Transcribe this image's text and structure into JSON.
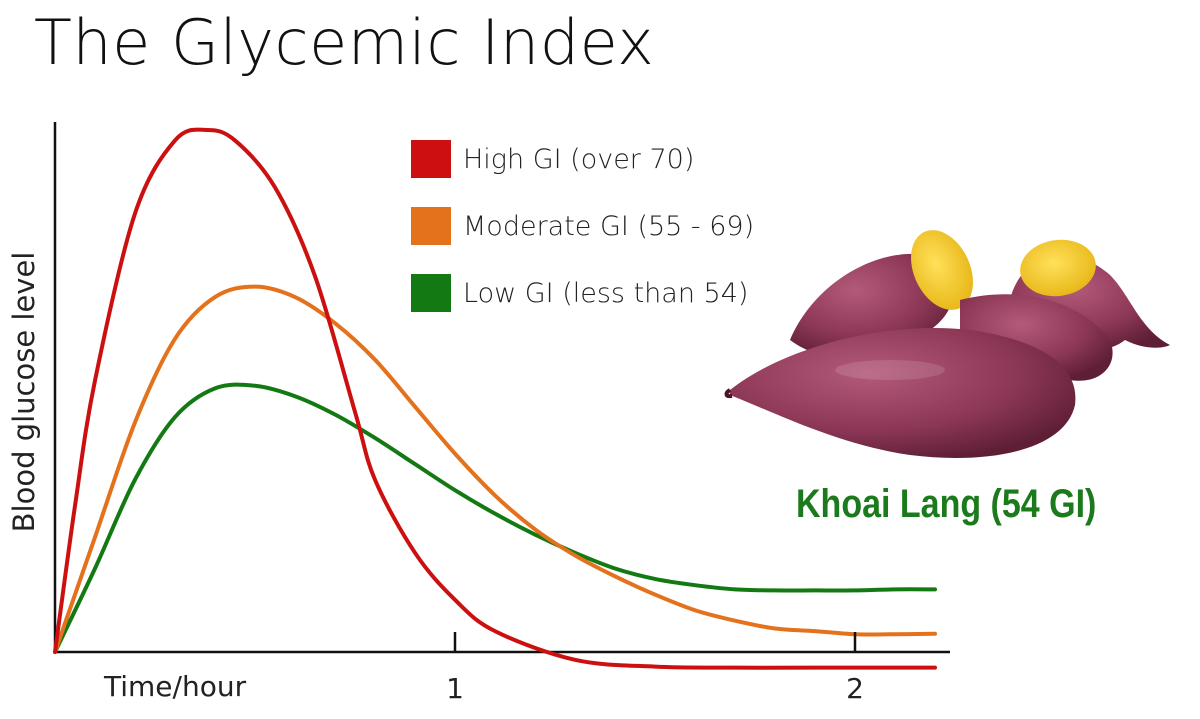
{
  "title": "The Glycemic Index",
  "caption": "Khoai Lang (54 GI)",
  "image": {
    "subject": "sweet-potatoes"
  },
  "colors": {
    "high": "#cc1010",
    "moderate": "#e4711b",
    "low": "#137a13",
    "caption": "#1b7a1b",
    "axis": "#111111"
  },
  "chart_data": {
    "type": "line",
    "title": "The Glycemic Index",
    "xlabel": "Time/hour",
    "ylabel": "Blood glucose level",
    "xlim": [
      0,
      2.2
    ],
    "ylim": [
      0,
      100
    ],
    "xticks": [
      1,
      2
    ],
    "xtick_labels": [
      "1",
      "2"
    ],
    "grid": false,
    "legend_position": "top",
    "series": [
      {
        "name": "High GI (over 70)",
        "color": "#cc1010",
        "x": [
          0,
          0.05,
          0.1,
          0.2,
          0.3,
          0.38,
          0.45,
          0.55,
          0.65,
          0.75,
          0.8,
          0.9,
          1.0,
          1.1,
          1.3,
          1.5,
          1.7,
          1.9,
          2.2
        ],
        "y": [
          0,
          28,
          52,
          84,
          98,
          100,
          98,
          89,
          72,
          46,
          33,
          19,
          10,
          4,
          -1.5,
          -2.8,
          -3,
          -3,
          -3
        ]
      },
      {
        "name": "Moderate GI (55 - 69)",
        "color": "#e4711b",
        "x": [
          0,
          0.1,
          0.2,
          0.3,
          0.4,
          0.5,
          0.6,
          0.7,
          0.8,
          0.9,
          1.0,
          1.1,
          1.2,
          1.3,
          1.4,
          1.5,
          1.6,
          1.7,
          1.8,
          1.9,
          2.0,
          2.1,
          2.2
        ],
        "y": [
          0,
          22,
          44,
          60,
          68,
          70,
          68,
          63,
          56,
          47,
          38,
          30,
          23.5,
          18.5,
          14.5,
          11,
          8,
          6,
          4.5,
          4,
          3.4,
          3.4,
          3.5
        ]
      },
      {
        "name": "Low GI (less than 54)",
        "color": "#137a13",
        "x": [
          0,
          0.1,
          0.2,
          0.3,
          0.4,
          0.5,
          0.6,
          0.7,
          0.8,
          0.9,
          1.0,
          1.1,
          1.2,
          1.3,
          1.4,
          1.5,
          1.6,
          1.7,
          1.8,
          1.9,
          2.0,
          2.1,
          2.2
        ],
        "y": [
          0,
          16,
          33,
          45,
          50.5,
          51,
          49,
          45.5,
          41,
          36,
          31,
          26.5,
          22.5,
          19,
          16,
          14,
          12.8,
          12,
          11.8,
          11.8,
          11.8,
          12,
          12
        ]
      }
    ]
  }
}
